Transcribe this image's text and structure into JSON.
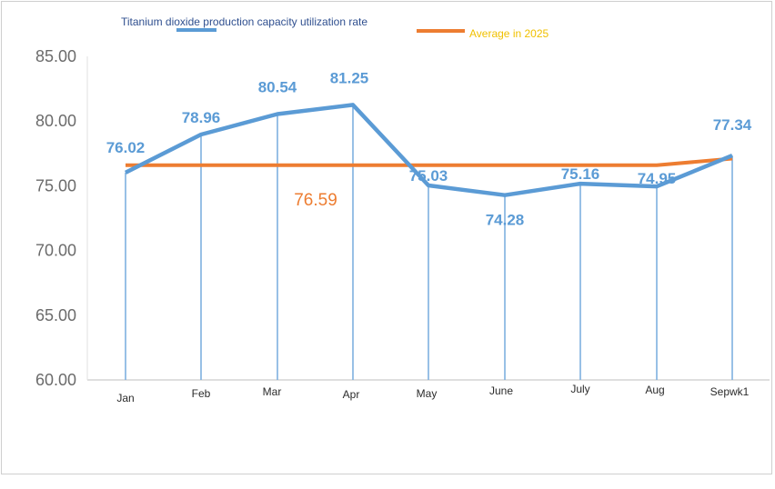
{
  "chart_data": {
    "type": "line",
    "categories": [
      "Jan",
      "Feb",
      "Mar",
      "Apr",
      "May",
      "June",
      "July",
      "Aug",
      "Sepwk1"
    ],
    "series": [
      {
        "name": "Titanium dioxide production capacity utilization rate",
        "values": [
          76.02,
          78.96,
          80.54,
          81.25,
          75.03,
          74.28,
          75.16,
          74.95,
          77.34
        ],
        "labels": [
          "76.02",
          "78.96",
          "80.54",
          "81.25",
          "75.03",
          "74.28",
          "75.16",
          "74.95",
          "77.34"
        ],
        "color": "#5b9bd5"
      },
      {
        "name": "Average in 2025",
        "values": [
          76.59,
          76.59,
          76.59,
          76.59,
          76.59,
          76.59,
          76.59,
          76.59,
          77.1
        ],
        "color": "#ed7d31"
      }
    ],
    "avg_label": "76.59",
    "yticks": [
      "60.00",
      "65.00",
      "70.00",
      "75.00",
      "80.00",
      "85.00"
    ],
    "ylim": [
      60,
      85
    ],
    "drop_lines": true,
    "grid": false,
    "legend": "top"
  }
}
